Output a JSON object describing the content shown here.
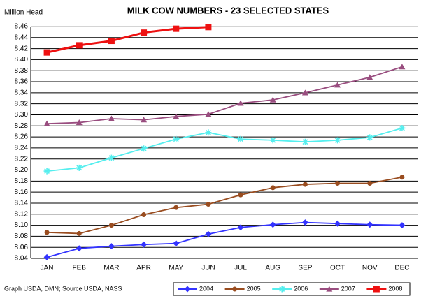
{
  "chart_data": {
    "type": "line",
    "title": "MILK COW NUMBERS - 23 SELECTED STATES",
    "y_label": "Million Head",
    "source": "Graph USDA, DMN; Source USDA, NASS",
    "categories": [
      "JAN",
      "FEB",
      "MAR",
      "APR",
      "MAY",
      "JUN",
      "JUL",
      "AUG",
      "SEP",
      "OCT",
      "NOV",
      "DEC"
    ],
    "ylim": [
      8.04,
      8.46
    ],
    "yticks": [
      8.04,
      8.06,
      8.08,
      {
        "value": 8.1,
        "label": "8.10"
      },
      8.12,
      8.14,
      8.16,
      8.18,
      {
        "value": 8.2,
        "label": "8.20"
      },
      8.22,
      8.24,
      8.26,
      8.28,
      {
        "value": 8.3,
        "label": "8.30"
      },
      8.32,
      8.34,
      8.36,
      8.38,
      {
        "value": 8.4,
        "label": "8.40"
      },
      8.42,
      8.44,
      8.46
    ],
    "grid": true,
    "legend": "bottom",
    "series": [
      {
        "name": "2004",
        "color": "#3333ff",
        "marker": "diamond",
        "values": [
          8.042,
          8.058,
          8.062,
          8.065,
          8.067,
          8.084,
          8.096,
          8.101,
          8.105,
          8.103,
          8.101,
          8.1
        ]
      },
      {
        "name": "2005",
        "color": "#994c1f",
        "marker": "circle",
        "values": [
          8.087,
          8.085,
          8.1,
          8.119,
          8.132,
          8.138,
          8.155,
          8.168,
          8.174,
          8.176,
          8.176,
          8.187
        ]
      },
      {
        "name": "2006",
        "color": "#55eeee",
        "marker": "star",
        "values": [
          8.198,
          8.204,
          8.222,
          8.239,
          8.256,
          8.268,
          8.256,
          8.254,
          8.251,
          8.254,
          8.259,
          8.276
        ]
      },
      {
        "name": "2007",
        "color": "#994d7f",
        "marker": "triangle",
        "values": [
          8.284,
          8.286,
          8.293,
          8.291,
          8.297,
          8.301,
          8.321,
          8.327,
          8.34,
          8.354,
          8.368,
          8.387
        ]
      },
      {
        "name": "2008",
        "color": "#ee1111",
        "marker": "square",
        "values": [
          8.413,
          8.426,
          8.434,
          8.449,
          8.456,
          8.459,
          null,
          null,
          null,
          null,
          null,
          null
        ]
      }
    ]
  }
}
